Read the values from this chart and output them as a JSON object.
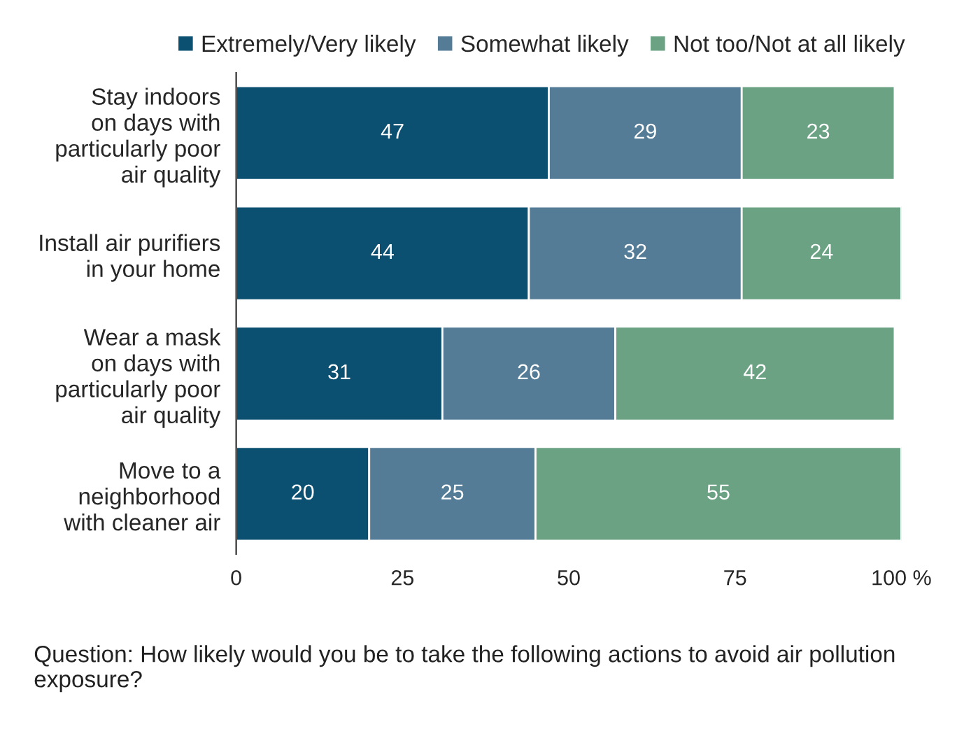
{
  "chart_data": {
    "type": "bar",
    "orientation": "horizontal",
    "stacked": true,
    "data_labels": true,
    "legend": "top",
    "grid": false,
    "categories": [
      "Stay indoors\non days with\nparticularly poor\nair quality",
      "Install air purifiers\nin your home",
      "Wear a mask\non days with\nparticularly poor\nair quality",
      "Move to a\nneighborhood\nwith cleaner air"
    ],
    "series": [
      {
        "name": "Extremely/Very likely",
        "color": "#0b4f71",
        "values": [
          47,
          44,
          31,
          20
        ]
      },
      {
        "name": "Somewhat likely",
        "color": "#547c96",
        "values": [
          29,
          32,
          26,
          25
        ]
      },
      {
        "name": "Not too/Not at all likely",
        "color": "#6aa283",
        "values": [
          23,
          24,
          42,
          55
        ]
      }
    ],
    "xlim": [
      0,
      100
    ],
    "xticks": [
      0,
      25,
      50,
      75,
      {
        "value": 100,
        "label": "100 %"
      }
    ],
    "annotations": [
      "Question: How likely would you be to take the following actions to avoid air pollution exposure?"
    ]
  }
}
